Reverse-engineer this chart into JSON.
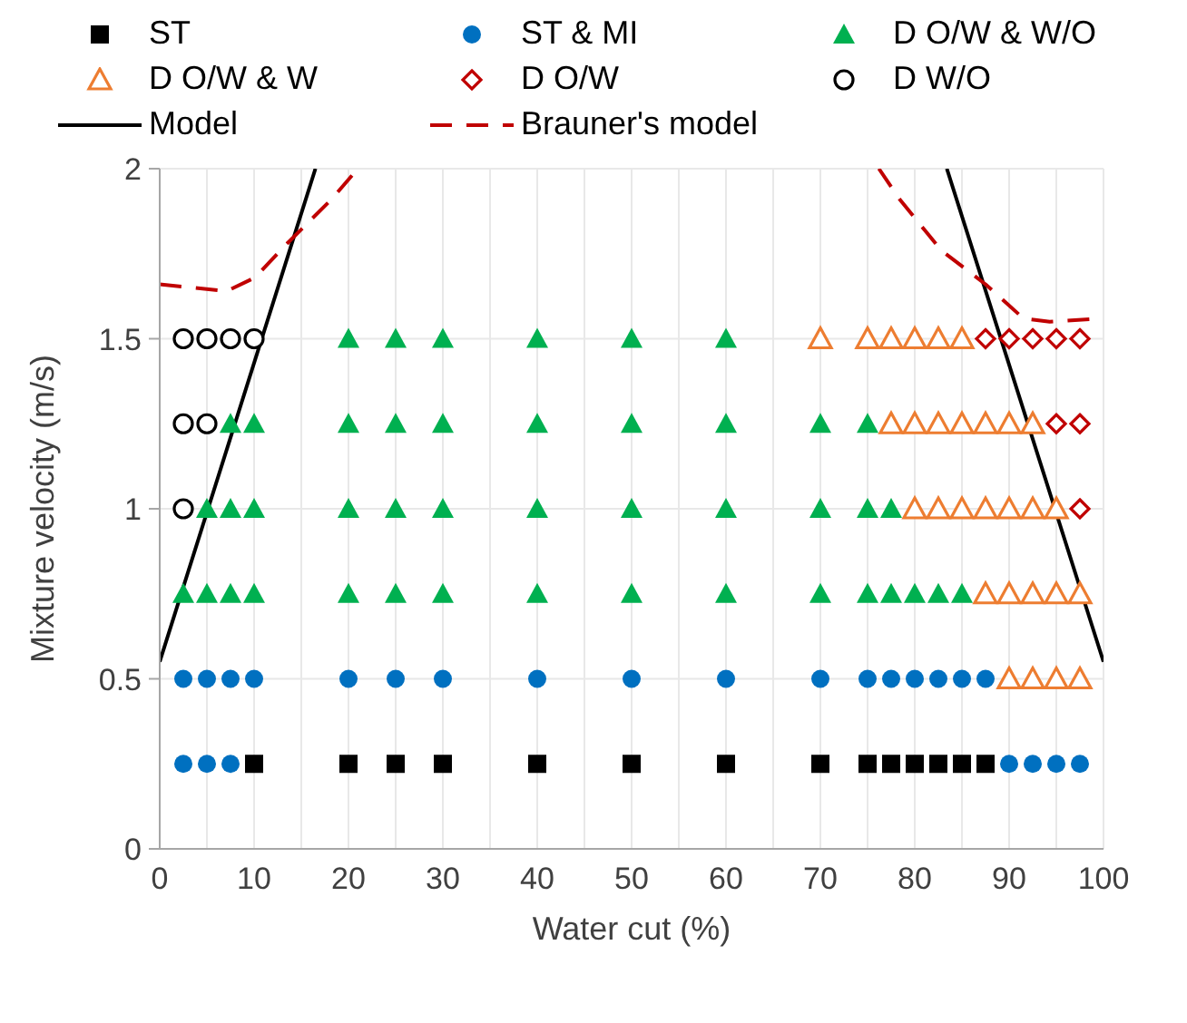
{
  "chart_data": {
    "type": "scatter",
    "xlabel": "Water cut (%)",
    "ylabel": "Mixture velocity (m/s)",
    "xlim": [
      0,
      100
    ],
    "ylim": [
      0,
      2
    ],
    "xticks": [
      0,
      {
        "value": 5,
        "label": null
      },
      10,
      {
        "value": 15,
        "label": null
      },
      20,
      {
        "value": 25,
        "label": null
      },
      30,
      {
        "value": 35,
        "label": null
      },
      40,
      {
        "value": 45,
        "label": null
      },
      50,
      {
        "value": 55,
        "label": null
      },
      60,
      {
        "value": 65,
        "label": null
      },
      70,
      {
        "value": 75,
        "label": null
      },
      80,
      {
        "value": 85,
        "label": null
      },
      90,
      {
        "value": 95,
        "label": null
      },
      100
    ],
    "yticks": [
      0,
      0.5,
      1,
      1.5,
      2
    ],
    "grid": true,
    "legend": "top",
    "series": [
      {
        "name": "ST",
        "color": "#000000",
        "marker": "square",
        "x": [
          10,
          20,
          25,
          30,
          40,
          50,
          60,
          70,
          75,
          77.5,
          80,
          82.5,
          85,
          87.5
        ],
        "values": [
          0.25,
          0.25,
          0.25,
          0.25,
          0.25,
          0.25,
          0.25,
          0.25,
          0.25,
          0.25,
          0.25,
          0.25,
          0.25,
          0.25
        ]
      },
      {
        "name": "ST & MI",
        "color": "#0070c0",
        "marker": "circle",
        "x": [
          2.5,
          5,
          7.5,
          90,
          92.5,
          95,
          97.5,
          2.5,
          5,
          7.5,
          10,
          20,
          25,
          30,
          40,
          50,
          60,
          70,
          75,
          77.5,
          80,
          82.5,
          85,
          87.5
        ],
        "values": [
          0.25,
          0.25,
          0.25,
          0.25,
          0.25,
          0.25,
          0.25,
          0.5,
          0.5,
          0.5,
          0.5,
          0.5,
          0.5,
          0.5,
          0.5,
          0.5,
          0.5,
          0.5,
          0.5,
          0.5,
          0.5,
          0.5,
          0.5,
          0.5
        ]
      },
      {
        "name": "D O/W & W/O",
        "color": "#00b050",
        "marker": "triangle",
        "x": [
          2.5,
          5,
          7.5,
          10,
          20,
          25,
          30,
          40,
          50,
          60,
          70,
          75,
          77.5,
          80,
          82.5,
          85,
          5,
          7.5,
          10,
          20,
          25,
          30,
          40,
          50,
          60,
          70,
          75,
          77.5,
          7.5,
          10,
          20,
          25,
          30,
          40,
          50,
          60,
          70,
          75,
          20,
          25,
          30,
          40,
          50,
          60
        ],
        "values": [
          0.75,
          0.75,
          0.75,
          0.75,
          0.75,
          0.75,
          0.75,
          0.75,
          0.75,
          0.75,
          0.75,
          0.75,
          0.75,
          0.75,
          0.75,
          0.75,
          1,
          1,
          1,
          1,
          1,
          1,
          1,
          1,
          1,
          1,
          1,
          1,
          1.25,
          1.25,
          1.25,
          1.25,
          1.25,
          1.25,
          1.25,
          1.25,
          1.25,
          1.25,
          1.5,
          1.5,
          1.5,
          1.5,
          1.5,
          1.5
        ]
      },
      {
        "name": "D O/W & W",
        "color": "#ed7d31",
        "marker": "triangle-open",
        "x": [
          90,
          92.5,
          95,
          97.5,
          87.5,
          90,
          92.5,
          95,
          97.5,
          80,
          82.5,
          85,
          87.5,
          90,
          92.5,
          95,
          77.5,
          80,
          82.5,
          85,
          87.5,
          90,
          92.5,
          70,
          75,
          77.5,
          80,
          82.5,
          85
        ],
        "values": [
          0.5,
          0.5,
          0.5,
          0.5,
          0.75,
          0.75,
          0.75,
          0.75,
          0.75,
          1,
          1,
          1,
          1,
          1,
          1,
          1,
          1.25,
          1.25,
          1.25,
          1.25,
          1.25,
          1.25,
          1.25,
          1.5,
          1.5,
          1.5,
          1.5,
          1.5,
          1.5
        ]
      },
      {
        "name": "D O/W",
        "color": "#c00000",
        "marker": "diamond-open",
        "x": [
          97.5,
          95,
          97.5,
          87.5,
          90,
          92.5,
          95,
          97.5
        ],
        "values": [
          1,
          1.25,
          1.25,
          1.5,
          1.5,
          1.5,
          1.5,
          1.5
        ]
      },
      {
        "name": "D W/O",
        "color": "#000000",
        "marker": "circle-open",
        "x": [
          2.5,
          2.5,
          5,
          2.5,
          5,
          7.5,
          10
        ],
        "values": [
          1,
          1.25,
          1.25,
          1.5,
          1.5,
          1.5,
          1.5
        ]
      },
      {
        "name": "Model",
        "type": "line",
        "color": "#000000",
        "line_style": "solid",
        "x": [
          0,
          16.5,
          50,
          83.4,
          100
        ],
        "values": [
          0.55,
          2,
          null,
          2,
          0.55
        ]
      },
      {
        "name": "Brauner's model",
        "type": "line",
        "color": "#c00000",
        "line_style": "dashed",
        "x": [
          0,
          7.1,
          10.1,
          13.5,
          18.2,
          21,
          50,
          76.2,
          78.4,
          82.8,
          87.5,
          91.5,
          94.3,
          100
        ],
        "values": [
          1.66,
          1.64,
          1.68,
          1.78,
          1.91,
          2,
          null,
          2,
          1.91,
          1.76,
          1.66,
          1.56,
          1.55,
          1.56
        ]
      }
    ]
  }
}
